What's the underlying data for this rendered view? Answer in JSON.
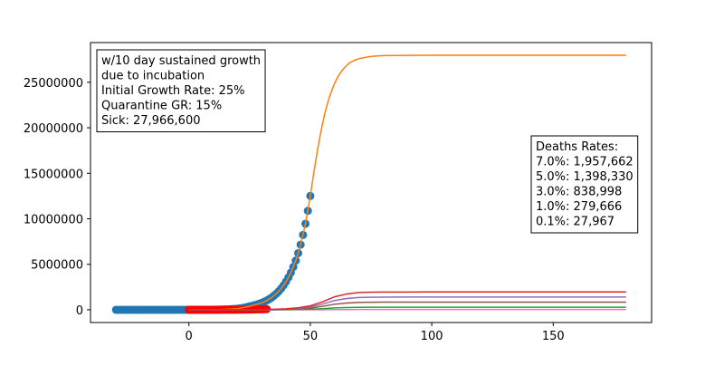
{
  "chart_data": {
    "type": "line",
    "xlim": [
      -40.5,
      190.5
    ],
    "xticks": [
      0,
      50,
      100,
      150
    ],
    "ylim": [
      -1398330,
      29364930
    ],
    "yticks": [
      0,
      5000000,
      10000000,
      15000000,
      20000000,
      25000000
    ],
    "annotation": [
      "w/10 day sustained growth",
      "due to incubation",
      "Initial Growth Rate: 25%",
      "Quarantine GR: 15%",
      "Sick: 27,966,600"
    ],
    "deaths_box": [
      "Deaths Rates:",
      "7.0%: 1,957,662",
      "5.0%: 1,398,330",
      "3.0%: 838,998",
      "1.0%: 279,666",
      "0.1%: 27,967"
    ],
    "series": [
      {
        "style": "markers",
        "color": "#1f77b4",
        "x": [
          -30,
          -29,
          -28,
          -27,
          -26,
          -25,
          -24,
          -23,
          -22,
          -21,
          -20,
          -19,
          -18,
          -17,
          -16,
          -15,
          -14,
          -13,
          -12,
          -11,
          -10,
          -9,
          -8,
          -7,
          -6,
          -5,
          -4,
          -3,
          -2,
          -1,
          0,
          1,
          2,
          3,
          4,
          5,
          6,
          7,
          8,
          9,
          10,
          11,
          12,
          13,
          14,
          15,
          16,
          17,
          18,
          19,
          20,
          21,
          22,
          23,
          24,
          25,
          26,
          27,
          28,
          29,
          30,
          31,
          32,
          33,
          34,
          35,
          36,
          37,
          38,
          39,
          40,
          41,
          42,
          43,
          44,
          45,
          46,
          47,
          48,
          49,
          50
        ],
        "values": [
          2,
          2,
          3,
          3,
          4,
          6,
          7,
          9,
          11,
          13,
          17,
          21,
          26,
          32,
          40,
          51,
          63,
          79,
          99,
          123,
          154,
          193,
          241,
          301,
          376,
          471,
          588,
          735,
          919,
          1149,
          1436,
          1795,
          2243,
          2804,
          3505,
          4381,
          5476,
          6846,
          8557,
          10696,
          13370,
          16713,
          20891,
          26113,
          32642,
          40802,
          51003,
          63753,
          79692,
          99615,
          124518,
          155648,
          194560,
          243200,
          304000,
          380000,
          437000,
          502550,
          577930,
          664620,
          764310,
          878960,
          1010800,
          1162420,
          1336780,
          1537300,
          1767890,
          2033070,
          2338030,
          2688730,
          3092040,
          3555840,
          4089220,
          4702610,
          5408000,
          6219200,
          7152080,
          8224890,
          9458620,
          10877410,
          12509020
        ]
      },
      {
        "style": "markers",
        "color": "#ff0000",
        "x": [
          0,
          1,
          2,
          3,
          4,
          5,
          6,
          7,
          8,
          9,
          10,
          11,
          12,
          13,
          14,
          15,
          16,
          17,
          18,
          19,
          20,
          21,
          22,
          23,
          24,
          25,
          26,
          27,
          28,
          29,
          30,
          31,
          32
        ],
        "values": [
          101,
          126,
          157,
          196,
          245,
          307,
          383,
          479,
          599,
          749,
          936,
          1170,
          1462,
          1828,
          2285,
          2856,
          3570,
          4463,
          5578,
          6973,
          8716,
          10895,
          13619,
          17024,
          21280,
          26600,
          30590,
          35179,
          40455,
          46523,
          53502,
          61527,
          70756
        ]
      },
      {
        "style": "line",
        "color": "#ff7f0e",
        "x": [
          0,
          5,
          10,
          15,
          20,
          25,
          30,
          32,
          34,
          36,
          38,
          40,
          42,
          44,
          46,
          48,
          50,
          51,
          52,
          53,
          54,
          55,
          56,
          57,
          58,
          60,
          62,
          64,
          66,
          68,
          70,
          75,
          80,
          90,
          100,
          120,
          150,
          180
        ],
        "values": [
          1436,
          4381,
          13370,
          40802,
          124518,
          380000,
          764310,
          1010800,
          1336780,
          1767890,
          2338030,
          3092040,
          4089220,
          5408000,
          7152080,
          9458620,
          12509020,
          14300000,
          16000000,
          17600000,
          19100000,
          20400000,
          21600000,
          22600000,
          23500000,
          24900000,
          25900000,
          26600000,
          27100000,
          27400000,
          27600000,
          27850000,
          27930000,
          27960000,
          27966000,
          27966600,
          27966600,
          27966600
        ]
      },
      {
        "style": "line",
        "color": "#e377c2",
        "x": [
          0,
          10,
          20,
          30,
          35,
          40,
          45,
          50,
          55,
          60,
          65,
          70,
          75,
          80,
          90,
          100,
          120,
          150,
          180
        ],
        "values": [
          1,
          4,
          41,
          380,
          764,
          1537,
          3092,
          6219,
          12509,
          20400,
          24900,
          27100,
          27600,
          27850,
          27930,
          27960,
          27967,
          27967,
          27967
        ]
      },
      {
        "style": "line",
        "color": "#2ca02c",
        "x": [
          0,
          10,
          20,
          30,
          35,
          40,
          45,
          50,
          55,
          60,
          65,
          70,
          75,
          80,
          90,
          100,
          120,
          150,
          180
        ],
        "values": [
          11,
          45,
          408,
          3801,
          7643,
          15373,
          30920,
          62192,
          125091,
          203999,
          249000,
          270999,
          276006,
          278505,
          279305,
          279604,
          279666,
          279666,
          279666
        ]
      },
      {
        "style": "line",
        "color": "#8c564b",
        "x": [
          0,
          10,
          20,
          30,
          35,
          40,
          45,
          50,
          55,
          60,
          65,
          70,
          75,
          80,
          90,
          100,
          120,
          150,
          180
        ],
        "values": [
          34,
          134,
          1225,
          11402,
          22930,
          46120,
          92760,
          186576,
          375276,
          611998,
          747002,
          813000,
          828018,
          835516,
          837916,
          838813,
          838998,
          838998,
          838998
        ]
      },
      {
        "style": "line",
        "color": "#9467bd",
        "x": [
          0,
          10,
          20,
          30,
          35,
          40,
          45,
          50,
          55,
          60,
          65,
          70,
          75,
          80,
          90,
          100,
          120,
          150,
          180
        ],
        "values": [
          56,
          224,
          2042,
          19003,
          38217,
          76866,
          154599,
          310961,
          625456,
          1019999,
          1245003,
          1355000,
          1380032,
          1392530,
          1396526,
          1398022,
          1398330,
          1398330,
          1398330
        ]
      },
      {
        "style": "line",
        "color": "#d62728",
        "x": [
          0,
          10,
          20,
          30,
          35,
          40,
          45,
          50,
          55,
          60,
          65,
          70,
          75,
          80,
          90,
          100,
          120,
          150,
          180
        ],
        "values": [
          78,
          313,
          2858,
          26605,
          53503,
          107613,
          216439,
          435344,
          875637,
          1427997,
          1743005,
          1896999,
          1932040,
          1949538,
          1955137,
          1957231,
          1957662,
          1957662,
          1957662
        ]
      }
    ]
  }
}
